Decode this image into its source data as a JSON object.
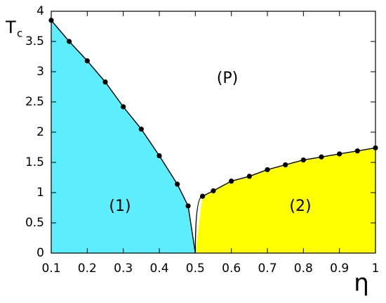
{
  "chart_data": {
    "type": "phase-diagram",
    "x_label": "η",
    "y_label": {
      "main": "T",
      "sub": "c"
    },
    "regions": [
      "(P)",
      "(1)",
      "(2)"
    ],
    "xlim": [
      0.1,
      1
    ],
    "ylim": [
      0,
      4
    ],
    "xticks": [
      0.1,
      0.2,
      0.3,
      0.4,
      0.5,
      0.6,
      0.7,
      0.8,
      0.9,
      1
    ],
    "yticks": [
      0,
      0.5,
      1,
      1.5,
      2,
      2.5,
      3,
      3.5,
      4
    ],
    "meeting_point": {
      "x": 0.5,
      "y": 0
    },
    "series": [
      {
        "color": "#5ceefc",
        "x": [
          0.1,
          0.15,
          0.2,
          0.25,
          0.3,
          0.35,
          0.4,
          0.45,
          0.48
        ],
        "values": [
          3.85,
          3.5,
          3.18,
          2.83,
          2.42,
          2.05,
          1.61,
          1.14,
          0.78
        ]
      },
      {
        "color": "#ffff00",
        "x": [
          0.52,
          0.55,
          0.6,
          0.65,
          0.7,
          0.75,
          0.8,
          0.85,
          0.9,
          0.95,
          1.0
        ],
        "values": [
          0.94,
          1.03,
          1.19,
          1.27,
          1.38,
          1.46,
          1.54,
          1.59,
          1.64,
          1.69,
          1.74
        ]
      }
    ]
  }
}
